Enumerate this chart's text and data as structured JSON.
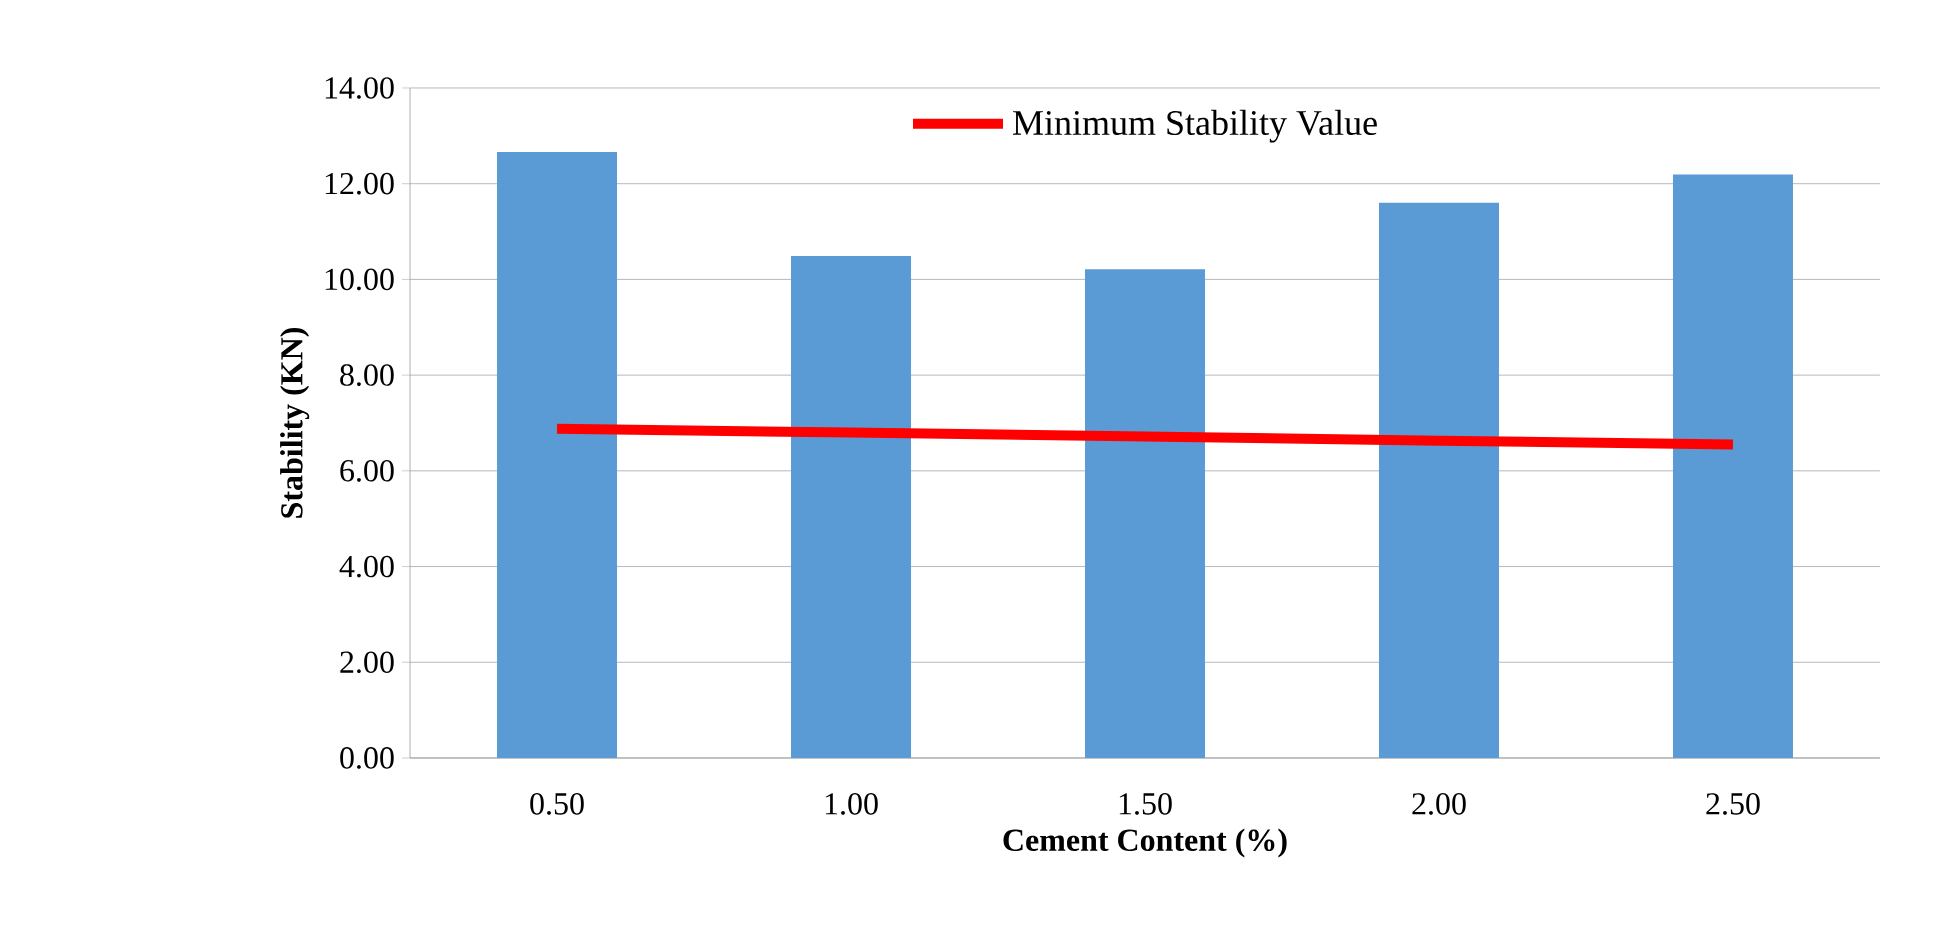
{
  "chart_data": {
    "type": "bar",
    "xlabel": "Cement Content (%)",
    "ylabel": "Stability (KN)",
    "categories": [
      "0.50",
      "1.00",
      "1.50",
      "2.00",
      "2.50"
    ],
    "series": [
      {
        "color": "#5b9bd5",
        "values": [
          12.66,
          10.49,
          10.21,
          11.6,
          12.19
        ]
      },
      {
        "name": "Minimum Stability Value",
        "type": "line",
        "color": "#ff0000",
        "values": [
          6.88,
          6.8,
          6.72,
          6.63,
          6.55
        ],
        "marker": "none"
      }
    ],
    "ylim": [
      0,
      14
    ],
    "yticks": [
      {
        "value": 0,
        "label": "0.00"
      },
      {
        "value": 2,
        "label": "2.00"
      },
      {
        "value": 4,
        "label": "4.00"
      },
      {
        "value": 6,
        "label": "6.00"
      },
      {
        "value": 8,
        "label": "8.00"
      },
      {
        "value": 10,
        "label": "10.00"
      },
      {
        "value": 12,
        "label": "12.00"
      },
      {
        "value": 14,
        "label": "14.00"
      }
    ],
    "grid": "y",
    "legend": "top"
  }
}
